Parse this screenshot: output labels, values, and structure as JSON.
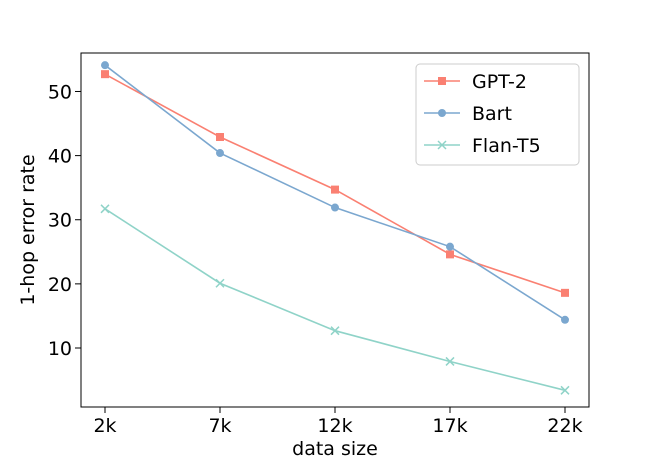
{
  "chart_data": {
    "type": "line",
    "title": "",
    "xlabel": "data size",
    "ylabel": "1-hop error rate",
    "categories": [
      "2k",
      "7k",
      "12k",
      "17k",
      "22k"
    ],
    "y_ticks": [
      10,
      20,
      30,
      40,
      50
    ],
    "ylim": [
      0.8,
      56.0
    ],
    "grid": false,
    "legend_position": "top-right",
    "series": [
      {
        "name": "GPT-2",
        "values": [
          52.7,
          42.9,
          34.7,
          24.6,
          18.6
        ],
        "color": "#fa8072",
        "marker": "square"
      },
      {
        "name": "Bart",
        "values": [
          54.1,
          40.4,
          31.9,
          25.8,
          14.4
        ],
        "color": "#7ba7cf",
        "marker": "circle"
      },
      {
        "name": "Flan-T5",
        "values": [
          31.7,
          20.1,
          12.7,
          7.9,
          3.4
        ],
        "color": "#8fd3c8",
        "marker": "x"
      }
    ]
  }
}
